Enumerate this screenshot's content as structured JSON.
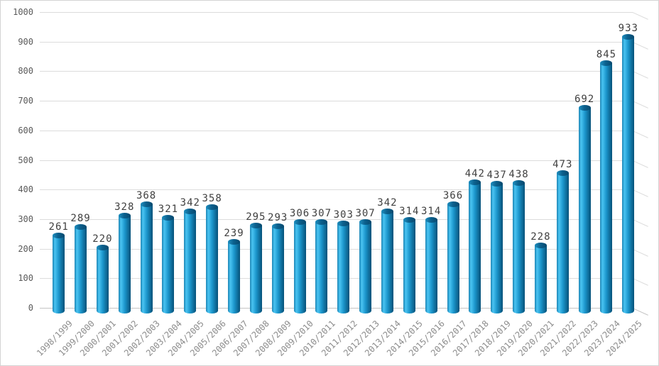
{
  "chart_data": {
    "type": "bar",
    "style": "3d-cylinder",
    "title": "",
    "xlabel": "",
    "ylabel": "",
    "categories": [
      "1998/1999",
      "1999/2000",
      "2000/2001",
      "2001/2002",
      "2002/2003",
      "2003/2004",
      "2004/2005",
      "2005/2006",
      "2006/2007",
      "2007/2008",
      "2008/2009",
      "2009/2010",
      "2010/2011",
      "2011/2012",
      "2012/2013",
      "2013/2014",
      "2014/2015",
      "2015/2016",
      "2016/2017",
      "2017/2018",
      "2018/2019",
      "2019/2020",
      "2020/2021",
      "2021/2022",
      "2022/2023",
      "2023/2024",
      "2024/2025"
    ],
    "values": [
      261,
      289,
      220,
      328,
      368,
      321,
      342,
      358,
      239,
      295,
      293,
      306,
      307,
      303,
      307,
      342,
      314,
      314,
      366,
      442,
      437,
      438,
      228,
      473,
      692,
      845,
      933
    ],
    "value_labels": [
      "261",
      "289",
      "220",
      "328",
      "368",
      "321",
      "342",
      "358",
      "239",
      "295",
      "293",
      "306",
      "307",
      "303",
      "307",
      "342",
      "314",
      "314",
      "366",
      "442",
      "437",
      "438",
      "228",
      "473",
      "692",
      "845",
      "933"
    ],
    "ylim": [
      0,
      1000
    ],
    "ytick_interval": 100,
    "ytick_labels": [
      "1000",
      "900",
      "800",
      "700",
      "600",
      "500",
      "400",
      "300",
      "200",
      "100",
      "0"
    ],
    "grid": true,
    "legend": false,
    "colors": {
      "background": "#ffffff",
      "border": "#d3d3d3",
      "gridline": "#dcdcdc",
      "gridline_zero": "#c4c4c4",
      "bar_edge_left": "#1c84b4",
      "bar_highlight": "#49c4f2",
      "bar_mid": "#1b95cb",
      "bar_edge_right": "#065179",
      "bar_top_light": "#1f8fc0",
      "bar_top_mid": "#0c618e",
      "bar_top_dark": "#07496e",
      "ytick_text": "#595959",
      "xtick_text": "#8c8c8c",
      "value_text": "#3f3f3f"
    }
  }
}
